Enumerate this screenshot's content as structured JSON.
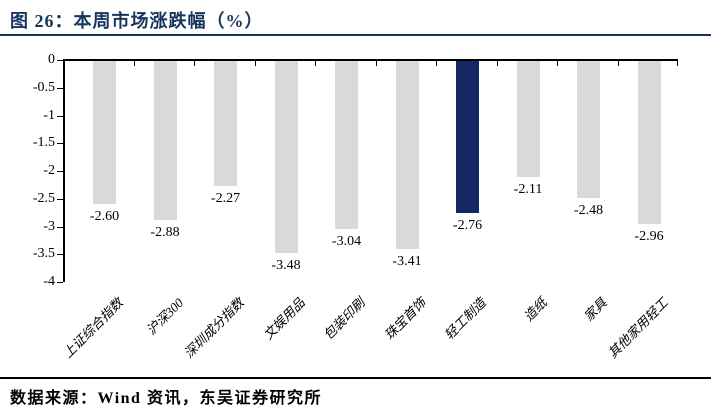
{
  "figure": {
    "title": "图 26：本周市场涨跌幅（%）",
    "source": "数据来源：Wind 资讯，东吴证券研究所"
  },
  "colors": {
    "title_navy": "#17365D",
    "bar_gray": "#D9D9D9",
    "bar_highlight_navy": "#132864",
    "axis_black": "#000000"
  },
  "chart_data": {
    "type": "bar",
    "title": "本周市场涨跌幅（%）",
    "categories": [
      "上证综合指数",
      "沪深300",
      "深圳成分指数",
      "文娱用品",
      "包装印刷",
      "珠宝首饰",
      "轻工制造",
      "造纸",
      "家具",
      "其他家用轻工"
    ],
    "values": [
      -2.6,
      -2.88,
      -2.27,
      -3.48,
      -3.04,
      -3.41,
      -2.76,
      -2.11,
      -2.48,
      -2.96
    ],
    "value_labels": [
      "-2.60",
      "-2.88",
      "-2.27",
      "-3.48",
      "-3.04",
      "-3.41",
      "-2.76",
      "-2.11",
      "-2.48",
      "-2.96"
    ],
    "highlight_index": 6,
    "highlight_category": "轻工制造",
    "xlabel": "",
    "ylabel": "",
    "ylim": [
      -4,
      0
    ],
    "yticks": [
      0,
      -0.5,
      -1,
      -1.5,
      -2,
      -2.5,
      -3,
      -3.5,
      -4
    ],
    "ytick_labels": [
      "0",
      "-0.5",
      "-1",
      "-1.5",
      "-2",
      "-2.5",
      "-3",
      "-3.5",
      "-4"
    ],
    "grid": false,
    "legend": "none",
    "bar_orientation": "vertical-negative"
  }
}
